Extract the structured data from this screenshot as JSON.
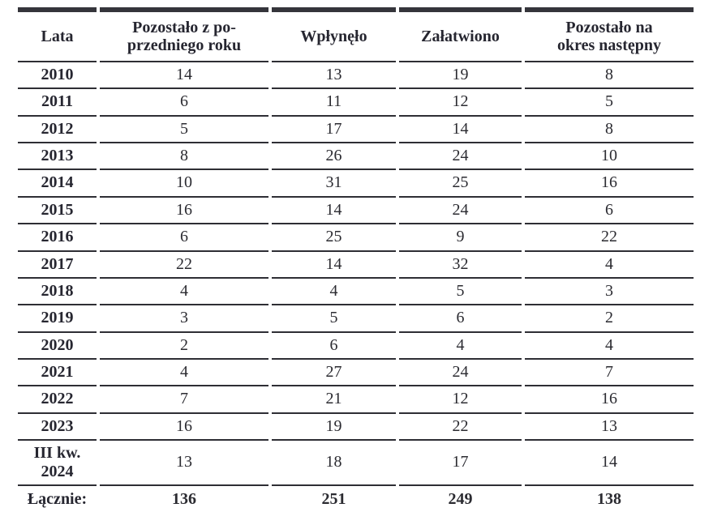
{
  "table": {
    "headers": [
      "Lata",
      "Pozostało z po-\nprzedniego roku",
      "Wpłynęło",
      "Załatwiono",
      "Pozostało na\nokres następny"
    ],
    "rows": [
      [
        "2010",
        14,
        13,
        19,
        8
      ],
      [
        "2011",
        6,
        11,
        12,
        5
      ],
      [
        "2012",
        5,
        17,
        14,
        8
      ],
      [
        "2013",
        8,
        26,
        24,
        10
      ],
      [
        "2014",
        10,
        31,
        25,
        16
      ],
      [
        "2015",
        16,
        14,
        24,
        6
      ],
      [
        "2016",
        6,
        25,
        9,
        22
      ],
      [
        "2017",
        22,
        14,
        32,
        4
      ],
      [
        "2018",
        4,
        4,
        5,
        3
      ],
      [
        "2019",
        3,
        5,
        6,
        2
      ],
      [
        "2020",
        2,
        6,
        4,
        4
      ],
      [
        "2021",
        4,
        27,
        24,
        7
      ],
      [
        "2022",
        7,
        21,
        12,
        16
      ],
      [
        "2023",
        16,
        19,
        22,
        13
      ],
      [
        "III kw.\n2024",
        13,
        18,
        17,
        14
      ]
    ],
    "total_row": [
      "Łącznie:",
      136,
      251,
      249,
      138
    ],
    "colors": {
      "text": "#262630",
      "rule_line": "#2e2e34",
      "thick_bar": "#35353b",
      "background": "#ffffff"
    }
  }
}
